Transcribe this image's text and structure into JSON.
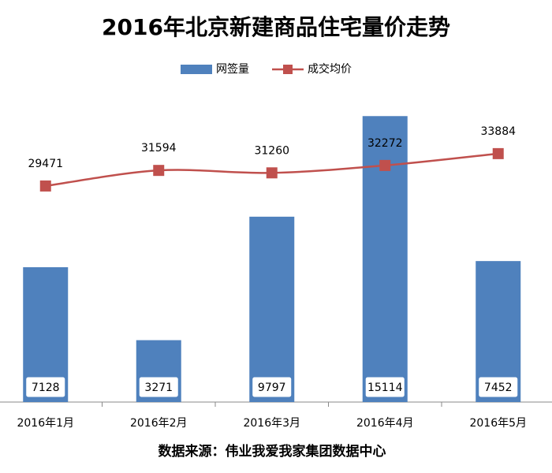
{
  "chart_data": {
    "type": "bar-line",
    "title": "2016年北京新建商品住宅量价走势",
    "source": "数据来源：伟业我爱我家集团数据中心",
    "categories": [
      "2016年1月",
      "2016年2月",
      "2016年3月",
      "2016年4月",
      "2016年5月"
    ],
    "series": [
      {
        "name": "网签量",
        "type": "bar",
        "color": "#4f81bd",
        "values": [
          7128,
          3271,
          9797,
          15114,
          7452
        ]
      },
      {
        "name": "成交均价",
        "type": "line",
        "color": "#c0504d",
        "axis": "y2",
        "values": [
          29471,
          31594,
          31260,
          32272,
          33884
        ]
      }
    ],
    "ylim": [
      0,
      16000
    ],
    "y2lim": [
      0,
      40000
    ],
    "legend": "top"
  }
}
